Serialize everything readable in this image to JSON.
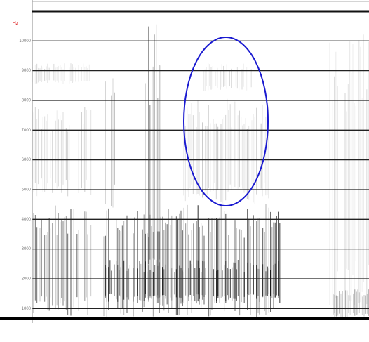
{
  "chart_data": {
    "type": "spectrogram",
    "y_label": "Hz",
    "ylim": [
      700,
      11000
    ],
    "yticks": [
      1000,
      2000,
      3000,
      4000,
      5000,
      6000,
      7000,
      8000,
      9000,
      10000
    ],
    "grid": true
  }
}
